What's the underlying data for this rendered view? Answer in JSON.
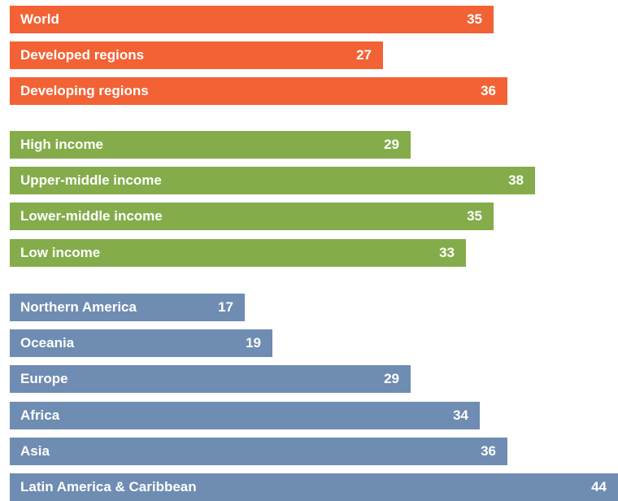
{
  "chart_data": {
    "type": "bar",
    "orientation": "horizontal",
    "xlim": [
      0,
      44
    ],
    "grid": false,
    "legend": "none",
    "groups": [
      {
        "color": "#f26235",
        "bars": [
          {
            "label": "World",
            "value": 35
          },
          {
            "label": "Developed regions",
            "value": 27
          },
          {
            "label": "Developing regions",
            "value": 36
          }
        ]
      },
      {
        "color": "#84ac4b",
        "bars": [
          {
            "label": "High income",
            "value": 29
          },
          {
            "label": "Upper-middle income",
            "value": 38
          },
          {
            "label": "Lower-middle income",
            "value": 35
          },
          {
            "label": "Low income",
            "value": 33
          }
        ]
      },
      {
        "color": "#6f8cb2",
        "bars": [
          {
            "label": "Northern America",
            "value": 17
          },
          {
            "label": "Oceania",
            "value": 19
          },
          {
            "label": "Europe",
            "value": 29
          },
          {
            "label": "Africa",
            "value": 34
          },
          {
            "label": "Asia",
            "value": 36
          },
          {
            "label": "Latin America & Caribbean",
            "value": 44
          }
        ]
      }
    ]
  }
}
